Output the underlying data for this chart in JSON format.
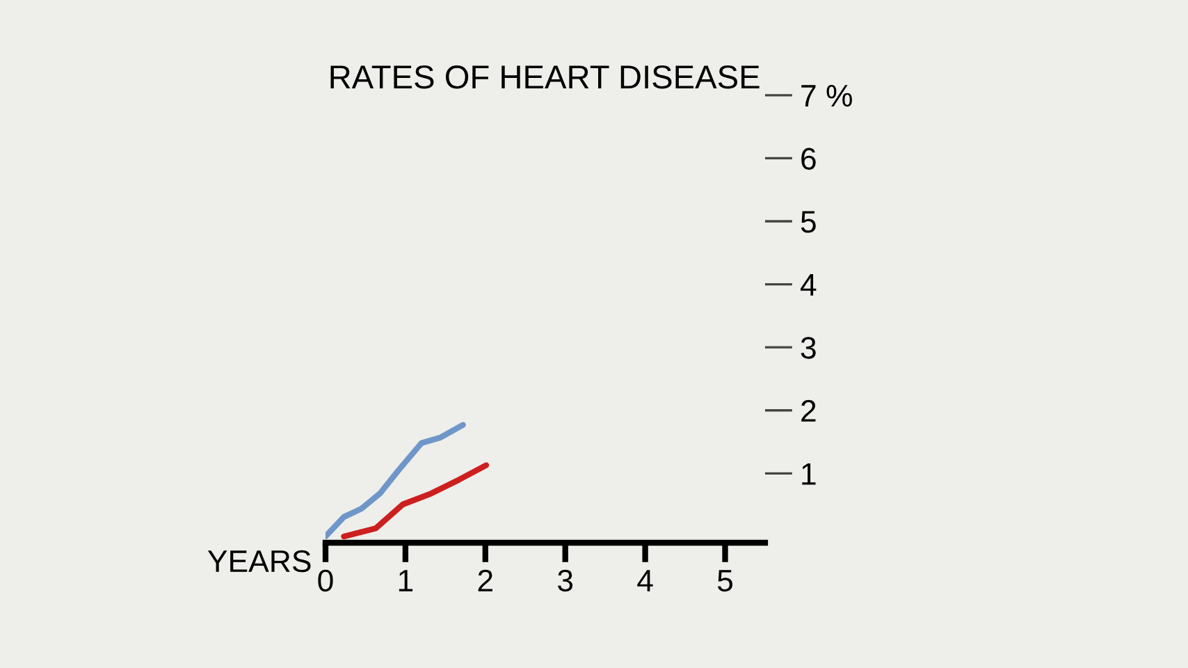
{
  "chart_data": {
    "type": "line",
    "ylabel": "RATES OF HEART DISEASE",
    "xlabel": "YEARS",
    "xlim": [
      0,
      5.5
    ],
    "xticks": [
      0,
      1,
      2,
      3,
      4,
      5
    ],
    "ylim": [
      -0.1,
      7
    ],
    "yticks": [
      1,
      2,
      3,
      4,
      5,
      6,
      {
        "value": 7,
        "label": "7 %"
      }
    ],
    "grid": false,
    "line_style": "solid",
    "marker": "none",
    "series": [
      {
        "color": "#6f96c8",
        "x": [
          0,
          0.23,
          0.45,
          0.68,
          0.92,
          1.2,
          1.44,
          1.72
        ],
        "values": [
          0,
          0.31,
          0.44,
          0.68,
          1.06,
          1.48,
          1.57,
          1.77
        ]
      },
      {
        "color": "#cc1f1f",
        "x": [
          0.23,
          0.63,
          0.97,
          1.32,
          1.67,
          2.01
        ],
        "values": [
          0,
          0.13,
          0.51,
          0.68,
          0.9,
          1.13
        ]
      }
    ]
  }
}
